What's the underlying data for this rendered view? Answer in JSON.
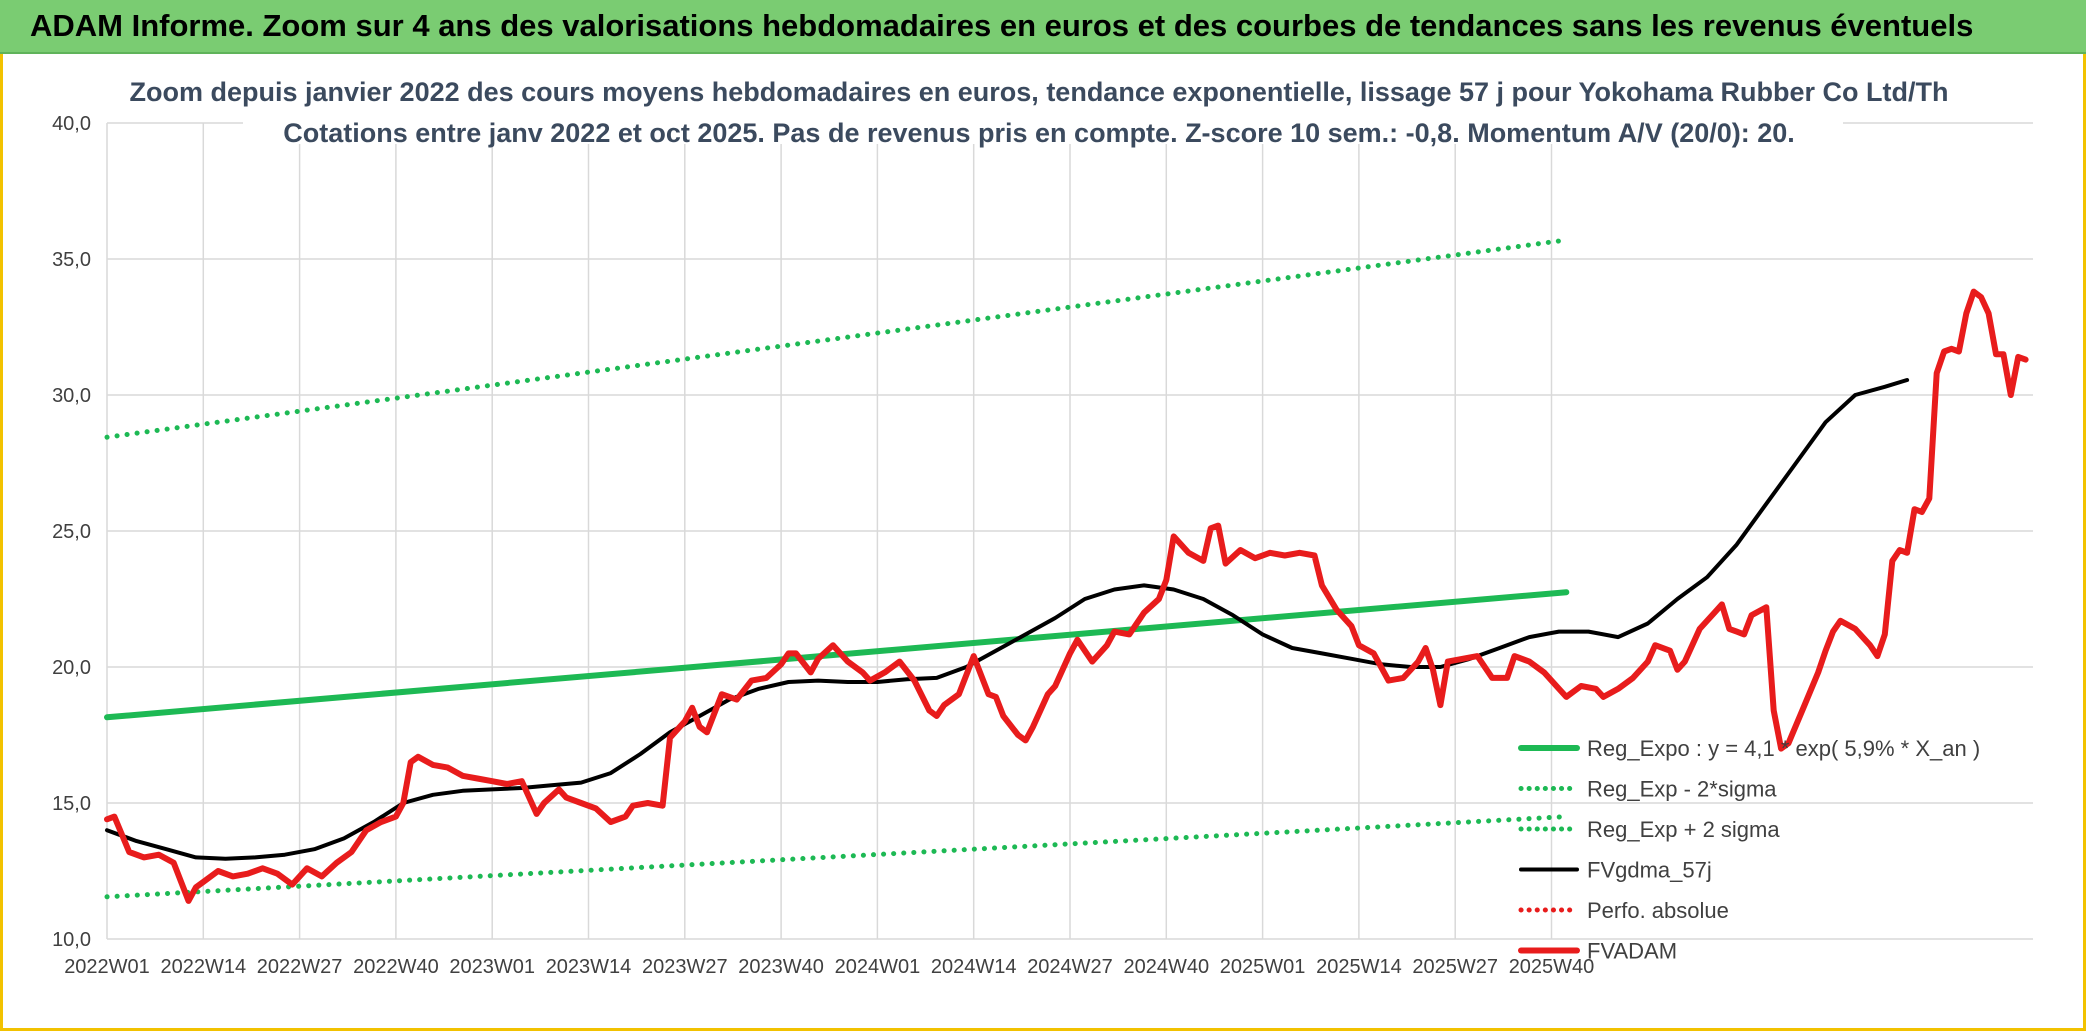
{
  "header": {
    "title": "ADAM Informe. Zoom sur 4 ans des valorisations hebdomadaires en euros et des courbes de tendances sans les revenus éventuels"
  },
  "chart_data": {
    "type": "line",
    "title_line1": "Zoom depuis janvier 2022 des cours moyens hebdomadaires en euros, tendance exponentielle, lissage 57 j pour Yokohama Rubber Co Ltd/Th",
    "title_line2": "Cotations entre janv 2022 et oct 2025. Pas de revenus pris en compte. Z-score 10 sem.: -0,8. Momentum A/V (20/0): 20.",
    "ylim": [
      10,
      40
    ],
    "y_ticks": [
      "10,0",
      "15,0",
      "20,0",
      "25,0",
      "30,0",
      "35,0",
      "40,0"
    ],
    "x_ticks": [
      "2022W01",
      "2022W14",
      "2022W27",
      "2022W40",
      "2023W01",
      "2023W14",
      "2023W27",
      "2023W40",
      "2024W01",
      "2024W14",
      "2024W27",
      "2024W40",
      "2025W01",
      "2025W14",
      "2025W27",
      "2025W40"
    ],
    "grid": true,
    "legend_position": "right-inside",
    "series": [
      {
        "name": "Reg_Expo : y = 4,1 * exp( 5,9% *  X_an )",
        "color": "#1db954",
        "style": "solid",
        "values": [
          [
            1,
            18.15
          ],
          [
            198,
            22.75
          ]
        ]
      },
      {
        "name": "Reg_Exp - 2*sigma",
        "color": "#1db954",
        "style": "dotted",
        "values": [
          [
            1,
            11.55
          ],
          [
            198,
            14.5
          ]
        ]
      },
      {
        "name": "Reg_Exp + 2 sigma",
        "color": "#1db954",
        "style": "dotted",
        "values": [
          [
            1,
            28.45
          ],
          [
            198,
            35.7
          ]
        ]
      },
      {
        "name": "FVgdma_57j",
        "color": "#000000",
        "style": "solid",
        "values": [
          [
            1,
            14.0
          ],
          [
            5,
            13.6
          ],
          [
            9,
            13.3
          ],
          [
            13,
            13.0
          ],
          [
            17,
            12.95
          ],
          [
            21,
            13.0
          ],
          [
            25,
            13.1
          ],
          [
            29,
            13.3
          ],
          [
            33,
            13.7
          ],
          [
            37,
            14.3
          ],
          [
            41,
            15.0
          ],
          [
            45,
            15.3
          ],
          [
            49,
            15.45
          ],
          [
            53,
            15.5
          ],
          [
            57,
            15.55
          ],
          [
            61,
            15.65
          ],
          [
            65,
            15.75
          ],
          [
            69,
            16.1
          ],
          [
            73,
            16.8
          ],
          [
            77,
            17.6
          ],
          [
            81,
            18.2
          ],
          [
            85,
            18.8
          ],
          [
            89,
            19.2
          ],
          [
            93,
            19.45
          ],
          [
            97,
            19.5
          ],
          [
            101,
            19.45
          ],
          [
            105,
            19.45
          ],
          [
            109,
            19.55
          ],
          [
            113,
            19.6
          ],
          [
            117,
            20.0
          ],
          [
            121,
            20.6
          ],
          [
            125,
            21.2
          ],
          [
            129,
            21.8
          ],
          [
            133,
            22.5
          ],
          [
            137,
            22.85
          ],
          [
            141,
            23.0
          ],
          [
            145,
            22.85
          ],
          [
            149,
            22.5
          ],
          [
            153,
            21.9
          ],
          [
            157,
            21.2
          ],
          [
            161,
            20.7
          ],
          [
            165,
            20.5
          ],
          [
            169,
            20.3
          ],
          [
            173,
            20.1
          ],
          [
            177,
            20.0
          ],
          [
            181,
            20.0
          ],
          [
            185,
            20.3
          ],
          [
            189,
            20.7
          ],
          [
            193,
            21.1
          ],
          [
            197,
            21.3
          ],
          [
            201,
            21.3
          ],
          [
            205,
            21.1
          ],
          [
            209,
            21.6
          ],
          [
            213,
            22.5
          ],
          [
            217,
            23.3
          ],
          [
            221,
            24.5
          ],
          [
            225,
            26.0
          ],
          [
            229,
            27.5
          ],
          [
            233,
            29.0
          ],
          [
            237,
            30.0
          ],
          [
            241,
            30.3
          ],
          [
            244,
            30.55
          ]
        ]
      },
      {
        "name": "Perfo. absolue",
        "color": "#e81c1c",
        "style": "dotted",
        "values": []
      },
      {
        "name": "FVADAM",
        "color": "#e81c1c",
        "style": "solid",
        "values": [
          [
            1,
            14.4
          ],
          [
            2,
            14.5
          ],
          [
            4,
            13.2
          ],
          [
            6,
            13.0
          ],
          [
            8,
            13.1
          ],
          [
            10,
            12.8
          ],
          [
            12,
            11.4
          ],
          [
            13,
            11.9
          ],
          [
            14,
            12.1
          ],
          [
            16,
            12.5
          ],
          [
            18,
            12.3
          ],
          [
            20,
            12.4
          ],
          [
            22,
            12.6
          ],
          [
            24,
            12.4
          ],
          [
            26,
            12.0
          ],
          [
            28,
            12.6
          ],
          [
            30,
            12.3
          ],
          [
            32,
            12.8
          ],
          [
            34,
            13.2
          ],
          [
            36,
            14.0
          ],
          [
            38,
            14.3
          ],
          [
            40,
            14.5
          ],
          [
            41,
            15.0
          ],
          [
            42,
            16.5
          ],
          [
            43,
            16.7
          ],
          [
            45,
            16.4
          ],
          [
            47,
            16.3
          ],
          [
            49,
            16.0
          ],
          [
            51,
            15.9
          ],
          [
            53,
            15.8
          ],
          [
            55,
            15.7
          ],
          [
            57,
            15.8
          ],
          [
            59,
            14.6
          ],
          [
            60,
            15.0
          ],
          [
            62,
            15.5
          ],
          [
            63,
            15.2
          ],
          [
            65,
            15.0
          ],
          [
            67,
            14.8
          ],
          [
            69,
            14.3
          ],
          [
            71,
            14.5
          ],
          [
            72,
            14.9
          ],
          [
            74,
            15.0
          ],
          [
            76,
            14.9
          ],
          [
            77,
            17.4
          ],
          [
            79,
            18.0
          ],
          [
            80,
            18.5
          ],
          [
            81,
            17.8
          ],
          [
            82,
            17.6
          ],
          [
            84,
            19.0
          ],
          [
            86,
            18.8
          ],
          [
            88,
            19.5
          ],
          [
            90,
            19.6
          ],
          [
            92,
            20.1
          ],
          [
            93,
            20.5
          ],
          [
            94,
            20.5
          ],
          [
            96,
            19.8
          ],
          [
            97,
            20.3
          ],
          [
            99,
            20.8
          ],
          [
            101,
            20.2
          ],
          [
            103,
            19.8
          ],
          [
            104,
            19.5
          ],
          [
            106,
            19.8
          ],
          [
            108,
            20.2
          ],
          [
            110,
            19.5
          ],
          [
            112,
            18.4
          ],
          [
            113,
            18.2
          ],
          [
            114,
            18.6
          ],
          [
            116,
            19.0
          ],
          [
            118,
            20.4
          ],
          [
            120,
            19.0
          ],
          [
            121,
            18.9
          ],
          [
            122,
            18.2
          ],
          [
            124,
            17.5
          ],
          [
            125,
            17.3
          ],
          [
            126,
            17.8
          ],
          [
            128,
            19.0
          ],
          [
            129,
            19.3
          ],
          [
            131,
            20.5
          ],
          [
            132,
            21.0
          ],
          [
            134,
            20.2
          ],
          [
            136,
            20.8
          ],
          [
            137,
            21.3
          ],
          [
            139,
            21.2
          ],
          [
            141,
            22.0
          ],
          [
            143,
            22.5
          ],
          [
            144,
            23.2
          ],
          [
            145,
            24.8
          ],
          [
            147,
            24.2
          ],
          [
            149,
            23.9
          ],
          [
            150,
            25.1
          ],
          [
            151,
            25.2
          ],
          [
            152,
            23.8
          ],
          [
            154,
            24.3
          ],
          [
            156,
            24.0
          ],
          [
            158,
            24.2
          ],
          [
            160,
            24.1
          ],
          [
            162,
            24.2
          ],
          [
            164,
            24.1
          ],
          [
            165,
            23.0
          ],
          [
            167,
            22.1
          ],
          [
            169,
            21.5
          ],
          [
            170,
            20.8
          ],
          [
            172,
            20.5
          ],
          [
            174,
            19.5
          ],
          [
            176,
            19.6
          ],
          [
            178,
            20.2
          ],
          [
            179,
            20.7
          ],
          [
            180,
            19.9
          ],
          [
            181,
            18.6
          ],
          [
            182,
            20.2
          ],
          [
            184,
            20.3
          ],
          [
            186,
            20.4
          ],
          [
            188,
            19.6
          ],
          [
            190,
            19.6
          ],
          [
            191,
            20.4
          ],
          [
            193,
            20.2
          ],
          [
            195,
            19.8
          ],
          [
            197,
            19.2
          ],
          [
            198,
            18.9
          ],
          [
            200,
            19.3
          ],
          [
            202,
            19.2
          ],
          [
            203,
            18.9
          ],
          [
            205,
            19.2
          ],
          [
            207,
            19.6
          ],
          [
            209,
            20.2
          ],
          [
            210,
            20.8
          ],
          [
            212,
            20.6
          ],
          [
            213,
            19.9
          ],
          [
            214,
            20.2
          ],
          [
            216,
            21.4
          ],
          [
            218,
            22.0
          ],
          [
            219,
            22.3
          ],
          [
            220,
            21.4
          ],
          [
            221,
            21.3
          ],
          [
            222,
            21.2
          ],
          [
            223,
            21.9
          ],
          [
            225,
            22.2
          ],
          [
            226,
            18.4
          ],
          [
            227,
            17.0
          ],
          [
            228,
            17.2
          ],
          [
            230,
            18.5
          ],
          [
            232,
            19.8
          ],
          [
            233,
            20.6
          ],
          [
            234,
            21.3
          ],
          [
            235,
            21.7
          ],
          [
            237,
            21.4
          ],
          [
            239,
            20.8
          ],
          [
            240,
            20.4
          ],
          [
            241,
            21.2
          ],
          [
            242,
            23.9
          ],
          [
            243,
            24.3
          ],
          [
            244,
            24.2
          ],
          [
            245,
            25.8
          ],
          [
            246,
            25.7
          ],
          [
            247,
            26.2
          ],
          [
            248,
            30.8
          ],
          [
            249,
            31.6
          ],
          [
            250,
            31.7
          ],
          [
            251,
            31.6
          ],
          [
            252,
            33.0
          ],
          [
            253,
            33.8
          ],
          [
            254,
            33.6
          ],
          [
            255,
            33.0
          ],
          [
            256,
            31.5
          ],
          [
            257,
            31.5
          ],
          [
            258,
            30.0
          ],
          [
            259,
            31.4
          ],
          [
            260,
            31.3
          ]
        ]
      }
    ]
  }
}
